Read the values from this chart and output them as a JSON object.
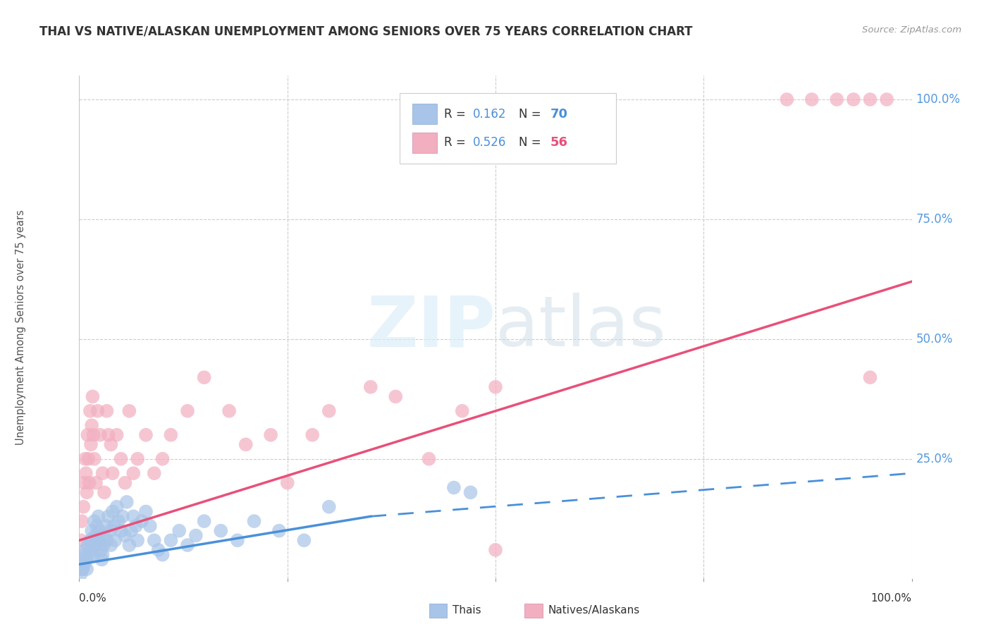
{
  "title": "THAI VS NATIVE/ALASKAN UNEMPLOYMENT AMONG SENIORS OVER 75 YEARS CORRELATION CHART",
  "source": "Source: ZipAtlas.com",
  "ylabel": "Unemployment Among Seniors over 75 years",
  "thai_color": "#a8c4e8",
  "native_color": "#f2afc0",
  "thai_line_color": "#4a90d9",
  "native_line_color": "#e8507a",
  "background_color": "#ffffff",
  "grid_color": "#cccccc",
  "right_tick_color": "#5599dd",
  "title_fontsize": 12,
  "thai_scatter": {
    "x": [
      0.002,
      0.003,
      0.004,
      0.005,
      0.006,
      0.007,
      0.008,
      0.009,
      0.01,
      0.012,
      0.013,
      0.014,
      0.015,
      0.016,
      0.017,
      0.018,
      0.019,
      0.02,
      0.021,
      0.022,
      0.023,
      0.024,
      0.025,
      0.026,
      0.027,
      0.028,
      0.029,
      0.03,
      0.032,
      0.033,
      0.035,
      0.037,
      0.038,
      0.04,
      0.042,
      0.043,
      0.045,
      0.047,
      0.05,
      0.052,
      0.055,
      0.057,
      0.06,
      0.062,
      0.065,
      0.068,
      0.07,
      0.075,
      0.08,
      0.085,
      0.09,
      0.095,
      0.1,
      0.11,
      0.12,
      0.13,
      0.14,
      0.15,
      0.17,
      0.19,
      0.21,
      0.24,
      0.27,
      0.3,
      0.001,
      0.002,
      0.003,
      0.004,
      0.45,
      0.47
    ],
    "y": [
      0.04,
      0.03,
      0.02,
      0.05,
      0.03,
      0.06,
      0.04,
      0.02,
      0.07,
      0.05,
      0.08,
      0.06,
      0.1,
      0.08,
      0.05,
      0.12,
      0.09,
      0.07,
      0.11,
      0.09,
      0.13,
      0.1,
      0.08,
      0.06,
      0.04,
      0.05,
      0.07,
      0.09,
      0.11,
      0.08,
      0.13,
      0.1,
      0.07,
      0.14,
      0.11,
      0.08,
      0.15,
      0.12,
      0.1,
      0.13,
      0.09,
      0.16,
      0.07,
      0.1,
      0.13,
      0.11,
      0.08,
      0.12,
      0.14,
      0.11,
      0.08,
      0.06,
      0.05,
      0.08,
      0.1,
      0.07,
      0.09,
      0.12,
      0.1,
      0.08,
      0.12,
      0.1,
      0.08,
      0.15,
      0.02,
      0.01,
      0.03,
      0.02,
      0.19,
      0.18
    ]
  },
  "native_scatter": {
    "x": [
      0.002,
      0.003,
      0.005,
      0.006,
      0.007,
      0.008,
      0.009,
      0.01,
      0.011,
      0.012,
      0.013,
      0.014,
      0.015,
      0.016,
      0.017,
      0.018,
      0.02,
      0.022,
      0.025,
      0.028,
      0.03,
      0.033,
      0.035,
      0.038,
      0.04,
      0.045,
      0.05,
      0.055,
      0.06,
      0.065,
      0.07,
      0.08,
      0.09,
      0.1,
      0.11,
      0.13,
      0.15,
      0.18,
      0.2,
      0.23,
      0.25,
      0.28,
      0.3,
      0.35,
      0.38,
      0.42,
      0.46,
      0.5,
      0.85,
      0.88,
      0.91,
      0.93,
      0.95,
      0.97,
      0.5,
      0.95
    ],
    "y": [
      0.08,
      0.12,
      0.15,
      0.2,
      0.25,
      0.22,
      0.18,
      0.3,
      0.25,
      0.2,
      0.35,
      0.28,
      0.32,
      0.38,
      0.3,
      0.25,
      0.2,
      0.35,
      0.3,
      0.22,
      0.18,
      0.35,
      0.3,
      0.28,
      0.22,
      0.3,
      0.25,
      0.2,
      0.35,
      0.22,
      0.25,
      0.3,
      0.22,
      0.25,
      0.3,
      0.35,
      0.42,
      0.35,
      0.28,
      0.3,
      0.2,
      0.3,
      0.35,
      0.4,
      0.38,
      0.25,
      0.35,
      0.4,
      1.0,
      1.0,
      1.0,
      1.0,
      1.0,
      1.0,
      0.06,
      0.42
    ]
  },
  "thai_trend_solid": {
    "x_start": 0.0,
    "x_end": 0.35,
    "y_start": 0.03,
    "y_end": 0.13
  },
  "thai_trend_dashed": {
    "x_start": 0.35,
    "x_end": 1.0,
    "y_start": 0.13,
    "y_end": 0.22
  },
  "native_trend": {
    "x_start": 0.0,
    "x_end": 1.0,
    "y_start": 0.08,
    "y_end": 0.62
  },
  "xlim": [
    0.0,
    1.0
  ],
  "ylim": [
    0.0,
    1.05
  ]
}
